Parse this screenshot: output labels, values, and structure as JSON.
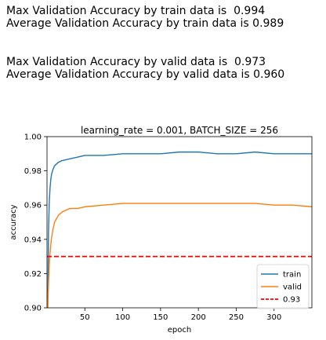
{
  "output": {
    "line1": "Max Validation Accuracy by train data is  0.994",
    "line2": "Average Validation Accuracy by train data is 0.989",
    "line3": "Max Validation Accuracy by valid data is  0.973",
    "line4": "Average Validation Accuracy by valid data is 0.960"
  },
  "chart_data": {
    "type": "line",
    "title": "learning_rate = 0.001, BATCH_SIZE = 256",
    "xlabel": "epoch",
    "ylabel": "accuracy",
    "xlim": [
      0,
      350
    ],
    "ylim": [
      0.9,
      1.0
    ],
    "x_ticks": [
      50,
      100,
      150,
      200,
      250,
      300
    ],
    "y_ticks": [
      0.9,
      0.92,
      0.94,
      0.96,
      0.98,
      1.0
    ],
    "y_tick_labels": [
      "0.90",
      "0.92",
      "0.94",
      "0.96",
      "0.98",
      "1.00"
    ],
    "legend_position": "bottom-right",
    "series": [
      {
        "name": "train",
        "color": "#1f77b4",
        "x": [
          1,
          2,
          3,
          4,
          5,
          6,
          8,
          10,
          15,
          20,
          30,
          40,
          50,
          75,
          100,
          125,
          150,
          175,
          200,
          225,
          250,
          275,
          300,
          325,
          350
        ],
        "values": [
          0.9,
          0.945,
          0.962,
          0.97,
          0.975,
          0.978,
          0.981,
          0.983,
          0.985,
          0.986,
          0.987,
          0.988,
          0.989,
          0.989,
          0.99,
          0.99,
          0.99,
          0.991,
          0.991,
          0.99,
          0.99,
          0.991,
          0.99,
          0.99,
          0.99
        ]
      },
      {
        "name": "valid",
        "color": "#ff7f0e",
        "x": [
          1,
          2,
          3,
          4,
          5,
          6,
          8,
          10,
          15,
          20,
          30,
          40,
          50,
          75,
          100,
          125,
          150,
          175,
          200,
          225,
          250,
          275,
          300,
          325,
          350
        ],
        "values": [
          0.9,
          0.915,
          0.925,
          0.932,
          0.937,
          0.941,
          0.946,
          0.95,
          0.954,
          0.956,
          0.958,
          0.958,
          0.959,
          0.96,
          0.961,
          0.961,
          0.961,
          0.961,
          0.961,
          0.961,
          0.961,
          0.961,
          0.96,
          0.96,
          0.959
        ]
      },
      {
        "name": "0.93",
        "color": "#ff0000",
        "style": "dashed",
        "x": [
          0,
          350
        ],
        "values": [
          0.93,
          0.93
        ]
      }
    ]
  }
}
